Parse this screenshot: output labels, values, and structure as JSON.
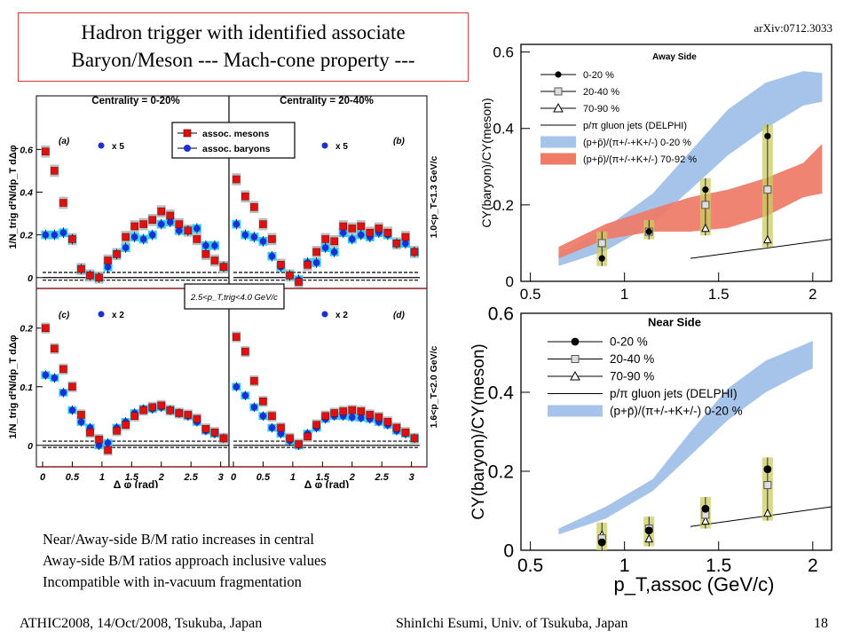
{
  "slide": {
    "title_line1": "Hadron trigger with identified associate",
    "title_line2": "Baryon/Meson --- Mach-cone property ---",
    "arxiv": "arXiv:0712.3033",
    "bullets": [
      "Near/Away-side B/M ratio increases in central",
      "Away-side B/M ratios approach inclusive values",
      "Incompatible with in-vacuum fragmentation"
    ],
    "footer_left": "ATHIC2008, 14/Oct/2008, Tsukuba, Japan",
    "footer_center": "ShinIchi Esumi, Univ. of Tsukuba, Japan",
    "page_number": "18"
  },
  "chart_data": [
    {
      "type": "scatter",
      "name": "dphi-panels",
      "centrality_labels": [
        "Centrality = 0-20%",
        "Centrality = 20-40%"
      ],
      "panel_labels": [
        "(a)",
        "(b)",
        "(c)",
        "(d)"
      ],
      "legend": [
        "assoc. mesons",
        "assoc. baryons"
      ],
      "scale_labels": [
        "x 5",
        "x 5",
        "x 2",
        "x 2"
      ],
      "trigger_label": "2.5<p_T,trig<4.0 GeV/c",
      "row_labels": [
        "1.0<p_T<1.3 GeV/c",
        "1.6<p_T<2.0 GeV/c"
      ],
      "ylabel": "1/N_trig d²N/dp_T dΔφ",
      "xlabel": "Δ φ (rad)",
      "xticks": [
        "0",
        "0.5",
        "1",
        "1.5",
        "2",
        "2.5",
        "3"
      ],
      "yticks_top": [
        "0",
        "0.2",
        "0.4",
        "0.6"
      ],
      "yticks_bottom": [
        "0",
        "0.1",
        "0.2"
      ],
      "xlim": [
        0,
        3.14
      ],
      "ylim_top": [
        -0.03,
        0.78
      ],
      "ylim_bottom": [
        -0.02,
        0.245
      ],
      "x": [
        0.05,
        0.2,
        0.35,
        0.5,
        0.65,
        0.8,
        0.95,
        1.1,
        1.25,
        1.4,
        1.55,
        1.7,
        1.85,
        2.0,
        2.15,
        2.3,
        2.45,
        2.6,
        2.75,
        2.9,
        3.05
      ],
      "panels": [
        {
          "id": "a",
          "mesons": [
            0.59,
            0.5,
            0.35,
            0.18,
            0.04,
            0.01,
            0.0,
            0.08,
            0.11,
            0.19,
            0.24,
            0.25,
            0.27,
            0.31,
            0.29,
            0.25,
            0.22,
            0.18,
            0.11,
            0.08,
            0.05
          ],
          "baryons": [
            0.2,
            0.2,
            0.21,
            0.18,
            0.04,
            0.01,
            0.0,
            0.05,
            0.11,
            0.14,
            0.19,
            0.18,
            0.2,
            0.25,
            0.26,
            0.22,
            0.22,
            0.23,
            0.15,
            0.15,
            0.05
          ]
        },
        {
          "id": "b",
          "mesons": [
            0.46,
            0.38,
            0.33,
            0.25,
            0.18,
            0.06,
            0.01,
            -0.02,
            0.06,
            0.12,
            0.18,
            0.17,
            0.24,
            0.23,
            0.24,
            0.21,
            0.23,
            0.21,
            0.16,
            0.19,
            0.12
          ],
          "baryons": [
            0.25,
            0.2,
            0.19,
            0.17,
            0.1,
            0.05,
            0.01,
            -0.01,
            0.07,
            0.07,
            0.14,
            0.12,
            0.21,
            0.18,
            0.2,
            0.19,
            0.21,
            0.2,
            0.16,
            0.16,
            0.12
          ]
        },
        {
          "id": "c",
          "mesons": [
            0.2,
            0.165,
            0.13,
            0.1,
            0.052,
            0.022,
            0.01,
            -0.008,
            0.025,
            0.035,
            0.05,
            0.06,
            0.065,
            0.068,
            0.06,
            0.055,
            0.052,
            0.045,
            0.028,
            0.022,
            0.012
          ],
          "baryons": [
            0.12,
            0.115,
            0.09,
            0.06,
            0.04,
            0.03,
            0.0,
            0.004,
            0.03,
            0.04,
            0.055,
            0.062,
            0.062,
            0.065,
            0.06,
            0.055,
            0.05,
            0.04,
            0.025,
            0.02,
            0.012
          ]
        },
        {
          "id": "d",
          "mesons": [
            0.185,
            0.16,
            0.11,
            0.075,
            0.05,
            0.03,
            0.012,
            0.002,
            0.015,
            0.035,
            0.05,
            0.055,
            0.058,
            0.06,
            0.058,
            0.052,
            0.048,
            0.04,
            0.03,
            0.022,
            0.012
          ],
          "baryons": [
            0.1,
            0.085,
            0.065,
            0.05,
            0.03,
            0.02,
            0.008,
            0.0,
            0.02,
            0.03,
            0.045,
            0.05,
            0.05,
            0.048,
            0.047,
            0.045,
            0.04,
            0.035,
            0.025,
            0.02,
            0.012
          ]
        }
      ]
    },
    {
      "type": "scatter",
      "name": "away-side-ratio",
      "title": "Away Side",
      "ylabel": "CY(baryon)/CY(meson)",
      "xticks": [
        "0.5",
        "1",
        "1.5",
        "2"
      ],
      "yticks": [
        "0",
        "0.2",
        "0.4",
        "0.6"
      ],
      "xlim": [
        0.45,
        2.1
      ],
      "ylim": [
        0,
        0.62
      ],
      "legend": [
        "0-20 %",
        "20-40 %",
        "70-90 %",
        "p/π gluon jets (DELPHI)",
        "(p+p̄)/(π+/-+K+/-) 0-20 %",
        "(p+p̄)/(π+/-+K+/-) 70-92 %"
      ],
      "x": [
        0.88,
        1.13,
        1.43,
        1.76
      ],
      "series": [
        {
          "name": "0-20 %",
          "values": [
            0.06,
            0.13,
            0.24,
            0.38
          ]
        },
        {
          "name": "20-40 %",
          "values": [
            0.1,
            0.13,
            0.2,
            0.24
          ]
        },
        {
          "name": "70-90 %",
          "values": [
            0.1,
            0.13,
            0.14,
            0.11
          ]
        }
      ],
      "delphi": {
        "x": [
          1.35,
          2.1
        ],
        "y": [
          0.06,
          0.11
        ]
      },
      "band_central": {
        "x": [
          0.65,
          0.9,
          1.15,
          1.35,
          1.55,
          1.75,
          1.95,
          2.05
        ],
        "low": [
          0.04,
          0.08,
          0.15,
          0.24,
          0.33,
          0.4,
          0.46,
          0.47
        ],
        "high": [
          0.07,
          0.14,
          0.23,
          0.34,
          0.45,
          0.52,
          0.55,
          0.545
        ]
      },
      "band_peripheral": {
        "x": [
          0.65,
          0.9,
          1.15,
          1.35,
          1.55,
          1.75,
          1.95,
          2.05
        ],
        "low": [
          0.06,
          0.11,
          0.13,
          0.13,
          0.14,
          0.17,
          0.22,
          0.23
        ],
        "high": [
          0.09,
          0.15,
          0.19,
          0.22,
          0.24,
          0.27,
          0.31,
          0.36
        ]
      }
    },
    {
      "type": "scatter",
      "name": "near-side-ratio",
      "title": "Near Side",
      "ylabel": "CY(baryon)/CY(meson)",
      "xlabel": "p_T,assoc (GeV/c)",
      "xticks": [
        "0.5",
        "1",
        "1.5",
        "2"
      ],
      "yticks": [
        "0",
        "0.2",
        "0.4",
        "0.6"
      ],
      "xlim": [
        0.45,
        2.1
      ],
      "ylim": [
        0,
        0.6
      ],
      "legend": [
        "0-20 %",
        "20-40 %",
        "70-90 %",
        "p/π gluon jets (DELPHI)",
        "(p+p̄)/(π+/-+K+/-) 0-20 %"
      ],
      "x": [
        0.88,
        1.13,
        1.43,
        1.76
      ],
      "series": [
        {
          "name": "0-20 %",
          "values": [
            0.02,
            0.05,
            0.105,
            0.205
          ]
        },
        {
          "name": "20-40 %",
          "values": [
            0.03,
            0.055,
            0.09,
            0.165
          ]
        },
        {
          "name": "70-90 %",
          "values": [
            0.04,
            0.03,
            0.075,
            0.095
          ]
        }
      ],
      "delphi": {
        "x": [
          1.35,
          2.1
        ],
        "y": [
          0.06,
          0.11
        ]
      },
      "band_central": {
        "x": [
          0.65,
          0.9,
          1.15,
          1.35,
          1.55,
          1.75,
          1.95,
          2.0
        ],
        "low": [
          0.04,
          0.08,
          0.15,
          0.24,
          0.33,
          0.4,
          0.45,
          0.46
        ],
        "high": [
          0.055,
          0.11,
          0.18,
          0.3,
          0.41,
          0.48,
          0.52,
          0.53
        ]
      }
    }
  ]
}
